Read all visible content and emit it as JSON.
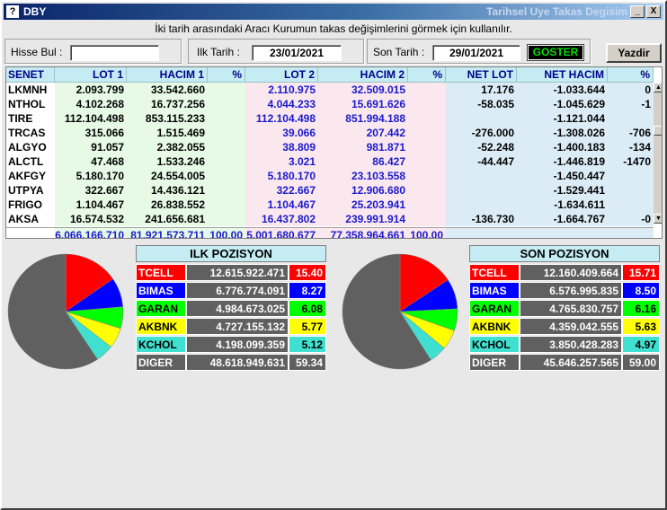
{
  "window": {
    "icon": "?",
    "title": "DBY",
    "caption": "Tarihsel Uye Takas Degisim",
    "minimize": "_",
    "close": "X"
  },
  "description": "İki tarih arasındaki  Aracı Kurumun takas değişimlerini görmek için kullanılır.",
  "form": {
    "hisse_label": "Hisse Bul :",
    "hisse_value": "",
    "ilk_label": "Ilk Tarih :",
    "ilk_value": "23/01/2021",
    "son_label": "Son Tarih :",
    "son_value": "29/01/2021",
    "goster": "GOSTER",
    "yazdir": "Yazdir"
  },
  "table": {
    "headers": [
      "SENET",
      "LOT 1",
      "HACIM 1",
      "%",
      "LOT 2",
      "HACIM 2",
      "%",
      "NET LOT",
      "NET HACIM",
      "%"
    ],
    "rows": [
      [
        "LKMNH",
        "2.093.799",
        "33.542.660",
        "",
        "2.110.975",
        "32.509.015",
        "",
        "17.176",
        "-1.033.644",
        "0"
      ],
      [
        "NTHOL",
        "4.102.268",
        "16.737.256",
        "",
        "4.044.233",
        "15.691.626",
        "",
        "-58.035",
        "-1.045.629",
        "-1"
      ],
      [
        "TIRE",
        "112.104.498",
        "853.115.233",
        "",
        "112.104.498",
        "851.994.188",
        "",
        "",
        "-1.121.044",
        ""
      ],
      [
        "TRCAS",
        "315.066",
        "1.515.469",
        "",
        "39.066",
        "207.442",
        "",
        "-276.000",
        "-1.308.026",
        "-706"
      ],
      [
        "ALGYO",
        "91.057",
        "2.382.055",
        "",
        "38.809",
        "981.871",
        "",
        "-52.248",
        "-1.400.183",
        "-134"
      ],
      [
        "ALCTL",
        "47.468",
        "1.533.246",
        "",
        "3.021",
        "86.427",
        "",
        "-44.447",
        "-1.446.819",
        "-1470"
      ],
      [
        "AKFGY",
        "5.180.170",
        "24.554.005",
        "",
        "5.180.170",
        "23.103.558",
        "",
        "",
        "-1.450.447",
        ""
      ],
      [
        "UTPYA",
        "322.667",
        "14.436.121",
        "",
        "322.667",
        "12.906.680",
        "",
        "",
        "-1.529.441",
        ""
      ],
      [
        "FRIGO",
        "1.104.467",
        "26.838.552",
        "",
        "1.104.467",
        "25.203.941",
        "",
        "",
        "-1.634.611",
        ""
      ],
      [
        "AKSA",
        "16.574.532",
        "241.656.681",
        "",
        "16.437.802",
        "239.991.914",
        "",
        "-136.730",
        "-1.664.767",
        "-0"
      ]
    ],
    "totals": [
      "",
      "6.066.166.710",
      "81.921.573.711",
      "100,00",
      "5.001.680.677",
      "77.358.964.661",
      "100,00",
      "",
      "",
      ""
    ]
  },
  "ilk_pozisyon": {
    "title": "ILK POZISYON",
    "rows": [
      {
        "name": "TCELL",
        "value": "12.615.922.471",
        "pct": "15.40",
        "pct_num": 15.4,
        "bg": "#ff0000",
        "fg": "#ffffff"
      },
      {
        "name": "BIMAS",
        "value": "6.776.774.091",
        "pct": "8.27",
        "pct_num": 8.27,
        "bg": "#0000ff",
        "fg": "#ffffff"
      },
      {
        "name": "GARAN",
        "value": "4.984.673.025",
        "pct": "6.08",
        "pct_num": 6.08,
        "bg": "#00ff00",
        "fg": "#000000"
      },
      {
        "name": "AKBNK",
        "value": "4.727.155.132",
        "pct": "5.77",
        "pct_num": 5.77,
        "bg": "#ffff00",
        "fg": "#000000"
      },
      {
        "name": "KCHOL",
        "value": "4.198.099.359",
        "pct": "5.12",
        "pct_num": 5.12,
        "bg": "#40e0d0",
        "fg": "#000000"
      },
      {
        "name": "DIGER",
        "value": "48.618.949.631",
        "pct": "59.34",
        "pct_num": 59.34,
        "bg": "#606060",
        "fg": "#ffffff"
      }
    ]
  },
  "son_pozisyon": {
    "title": "SON POZISYON",
    "rows": [
      {
        "name": "TCELL",
        "value": "12.160.409.664",
        "pct": "15.71",
        "pct_num": 15.71,
        "bg": "#ff0000",
        "fg": "#ffffff"
      },
      {
        "name": "BIMAS",
        "value": "6.576.995.835",
        "pct": "8.50",
        "pct_num": 8.5,
        "bg": "#0000ff",
        "fg": "#ffffff"
      },
      {
        "name": "GARAN",
        "value": "4.765.830.757",
        "pct": "6.16",
        "pct_num": 6.16,
        "bg": "#00ff00",
        "fg": "#000000"
      },
      {
        "name": "AKBNK",
        "value": "4.359.042.555",
        "pct": "5.63",
        "pct_num": 5.63,
        "bg": "#ffff00",
        "fg": "#000000"
      },
      {
        "name": "KCHOL",
        "value": "3.850.428.283",
        "pct": "4.97",
        "pct_num": 4.97,
        "bg": "#40e0d0",
        "fg": "#000000"
      },
      {
        "name": "DIGER",
        "value": "45.646.257.565",
        "pct": "59.00",
        "pct_num": 59.0,
        "bg": "#606060",
        "fg": "#ffffff"
      }
    ]
  },
  "colors": {
    "lot1_bg": "#e6fae6",
    "lot2_bg": "#fbe8ee",
    "net_bg": "#dcecf6",
    "blue_text": "#1a1acd"
  }
}
